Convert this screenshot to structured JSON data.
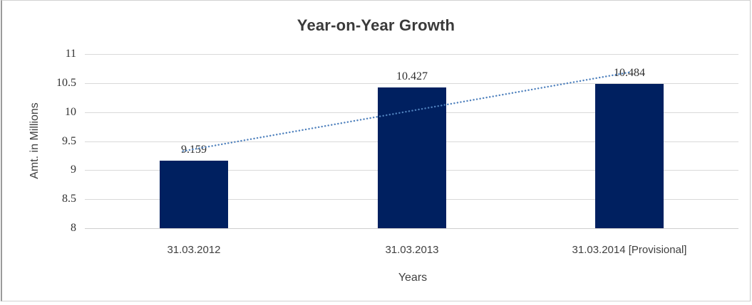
{
  "chart_data": {
    "type": "bar",
    "title": "Year-on-Year Growth",
    "xlabel": "Years",
    "ylabel": "Amt. in Millions",
    "categories": [
      "31.03.2012",
      "31.03.2013",
      "31.03.2014 [Provisional]"
    ],
    "values": [
      9.159,
      10.427,
      10.484
    ],
    "value_labels": [
      "9.159",
      "10.427",
      "10.484"
    ],
    "ylim": [
      8,
      11
    ],
    "ytick_labels": [
      "11",
      "10.5",
      "10",
      "9.5",
      "9",
      "8.5",
      "8"
    ],
    "grid": "horizontal",
    "legend": "none",
    "colors": {
      "bar": "#002060",
      "trendline": "#4f81bd",
      "gridline": "#d9d9d9",
      "text": "#3a3a3a"
    },
    "trendline": {
      "type": "linear",
      "style": "dotted"
    }
  }
}
